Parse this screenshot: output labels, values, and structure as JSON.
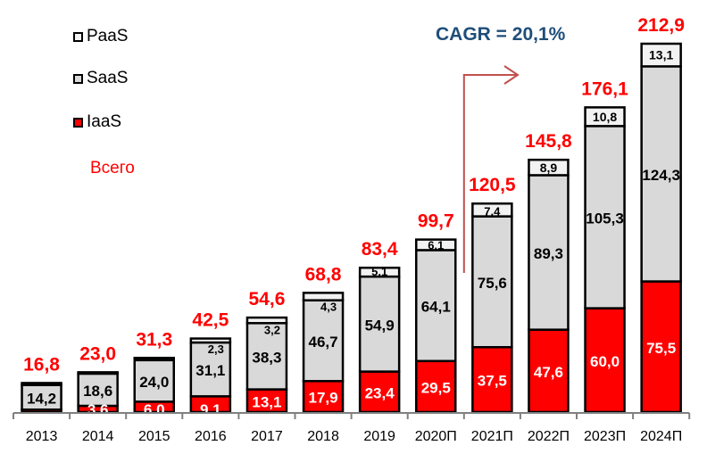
{
  "chart_data": {
    "type": "bar",
    "stacked": true,
    "title": "",
    "xlabel": "",
    "ylabel": "",
    "ylim": [
      0,
      212.9
    ],
    "grid": false,
    "legend_position": "top-left",
    "categories": [
      "2013",
      "2014",
      "2015",
      "2016",
      "2017",
      "2018",
      "2019",
      "2020П",
      "2021П",
      "2022П",
      "2023П",
      "2024П"
    ],
    "series": [
      {
        "name": "IaaS",
        "color": "#ff0000",
        "values": [
          null,
          3.6,
          6.0,
          9.1,
          13.1,
          17.9,
          23.4,
          29.5,
          37.5,
          47.6,
          60.0,
          75.5
        ],
        "labels": [
          "",
          "3,6",
          "6,0",
          "9,1",
          "13,1",
          "17,9",
          "23,4",
          "29,5",
          "37,5",
          "47,6",
          "60,0",
          "75,5"
        ],
        "approx_values": [
          1.4,
          3.6,
          6.0,
          9.1,
          13.1,
          17.9,
          23.4,
          29.5,
          37.5,
          47.6,
          60.0,
          75.5
        ]
      },
      {
        "name": "SaaS",
        "color": "#d9d9d9",
        "values": [
          14.2,
          18.6,
          24.0,
          31.1,
          38.3,
          46.7,
          54.9,
          64.1,
          75.6,
          89.3,
          105.3,
          124.3
        ],
        "labels": [
          "14,2",
          "18,6",
          "24,0",
          "31,1",
          "38,3",
          "46,7",
          "54,9",
          "64,1",
          "75,6",
          "89,3",
          "105,3",
          "124,3"
        ]
      },
      {
        "name": "PaaS",
        "color": "#f2f2f2",
        "values": [
          null,
          null,
          null,
          2.3,
          3.2,
          4.3,
          5.1,
          6.1,
          7.4,
          8.9,
          10.8,
          13.1
        ],
        "labels": [
          "",
          "",
          "",
          "2,3",
          "3,2",
          "4,3",
          "5,1",
          "6,1",
          "7,4",
          "8,9",
          "10,8",
          "13,1"
        ],
        "approx_values": [
          1.2,
          0.8,
          1.3,
          2.3,
          3.2,
          4.3,
          5.1,
          6.1,
          7.4,
          8.9,
          10.8,
          13.1
        ]
      }
    ],
    "totals": [
      16.8,
      23.0,
      31.3,
      42.5,
      54.6,
      68.8,
      83.4,
      99.7,
      120.5,
      145.8,
      176.1,
      212.9
    ],
    "total_labels": [
      "16,8",
      "23,0",
      "31,3",
      "42,5",
      "54,6",
      "68,8",
      "83,4",
      "99,7",
      "120,5",
      "145,8",
      "176,1",
      "212,9"
    ],
    "legend": [
      "PaaS",
      "SaaS",
      "IaaS",
      "Всего"
    ],
    "annotations": [
      {
        "text": "CAGR = 20,1%",
        "color": "#1f4e79",
        "arrow": "from 2020П to 2021П, pointing right",
        "arrow_color": "#c0504d"
      }
    ]
  },
  "legend": {
    "paas": "PaaS",
    "saas": "SaaS",
    "iaas": "IaaS",
    "total": "Всего"
  },
  "annotation": {
    "cagr": "CAGR = 20,1%"
  }
}
